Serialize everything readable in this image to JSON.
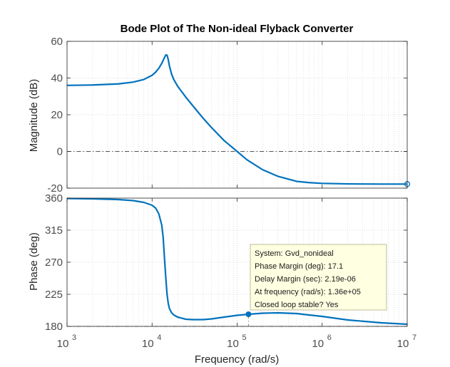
{
  "chart_data": {
    "type": "line",
    "title": "Bode Plot of The Non-ideal Flyback Converter",
    "xlabel": "Frequency  (rad/s)",
    "xscale": "log",
    "xlim": [
      1000,
      10000000
    ],
    "x_ticks": [
      {
        "value": 1000,
        "base": "10",
        "exp": "3"
      },
      {
        "value": 10000,
        "base": "10",
        "exp": "4"
      },
      {
        "value": 100000,
        "base": "10",
        "exp": "5"
      },
      {
        "value": 1000000,
        "base": "10",
        "exp": "6"
      },
      {
        "value": 10000000,
        "base": "10",
        "exp": "7"
      }
    ],
    "grid": true,
    "colors": {
      "line": "#0072bd",
      "axis": "#262626",
      "grid": "#d0d0d0",
      "zero_line": "#555555"
    },
    "magnitude": {
      "ylabel": "Magnitude (dB)",
      "ylim": [
        -20,
        60
      ],
      "yticks": [
        "60",
        "40",
        "20",
        "0",
        "-20"
      ],
      "ytick_values": [
        60,
        40,
        20,
        0,
        -20
      ],
      "reference_line": 0,
      "x": [
        1000,
        2000,
        4000,
        6000,
        8000,
        10000,
        11000,
        12000,
        13000,
        14000,
        14500,
        15000,
        15500,
        16000,
        17000,
        18000,
        20000,
        25000,
        30000,
        40000,
        50000,
        70000,
        100000,
        130000,
        200000,
        300000,
        500000,
        700000,
        1000000,
        2000000,
        5000000,
        10000000
      ],
      "y": [
        36,
        36.2,
        36.8,
        37.8,
        39.2,
        41.5,
        43.2,
        45.3,
        48,
        51.2,
        52.6,
        52.5,
        50,
        46.5,
        42,
        39.2,
        35.5,
        29.5,
        25,
        18,
        13,
        6,
        0,
        -4.5,
        -10,
        -13.5,
        -16.3,
        -17,
        -17.4,
        -17.7,
        -17.8,
        -17.8
      ],
      "endpoint_marker": {
        "x": 10000000,
        "y": -17.8
      }
    },
    "phase": {
      "ylabel": "Phase (deg)",
      "ylim": [
        180,
        360
      ],
      "yticks": [
        "360",
        "315",
        "270",
        "225",
        "180"
      ],
      "ytick_values": [
        360,
        315,
        270,
        225,
        180
      ],
      "reference_line": 180,
      "x": [
        1000,
        2000,
        4000,
        6000,
        8000,
        10000,
        11000,
        12000,
        13000,
        13500,
        14000,
        14500,
        15000,
        15500,
        16000,
        17000,
        18000,
        20000,
        25000,
        30000,
        40000,
        50000,
        70000,
        100000,
        136000,
        200000,
        300000,
        500000,
        700000,
        1000000,
        2000000,
        5000000,
        10000000
      ],
      "y": [
        359.5,
        359,
        358,
        356.5,
        354,
        350,
        346,
        338,
        322,
        305,
        275,
        248,
        225,
        212,
        205,
        199,
        196,
        193,
        190,
        189.5,
        189.5,
        190.5,
        193,
        195.5,
        197,
        198.5,
        199,
        198,
        196,
        194,
        189,
        185,
        183
      ],
      "marker": {
        "x": 136000,
        "y": 197
      }
    },
    "annotation": {
      "lines": [
        "System: Gvd_nonideal",
        "Phase Margin (deg): 17.1",
        "Delay Margin (sec): 2.19e-06",
        "At frequency (rad/s): 1.36e+05",
        "Closed loop stable? Yes"
      ],
      "background": "#ffffe1",
      "border": "#bdbd9a"
    }
  }
}
